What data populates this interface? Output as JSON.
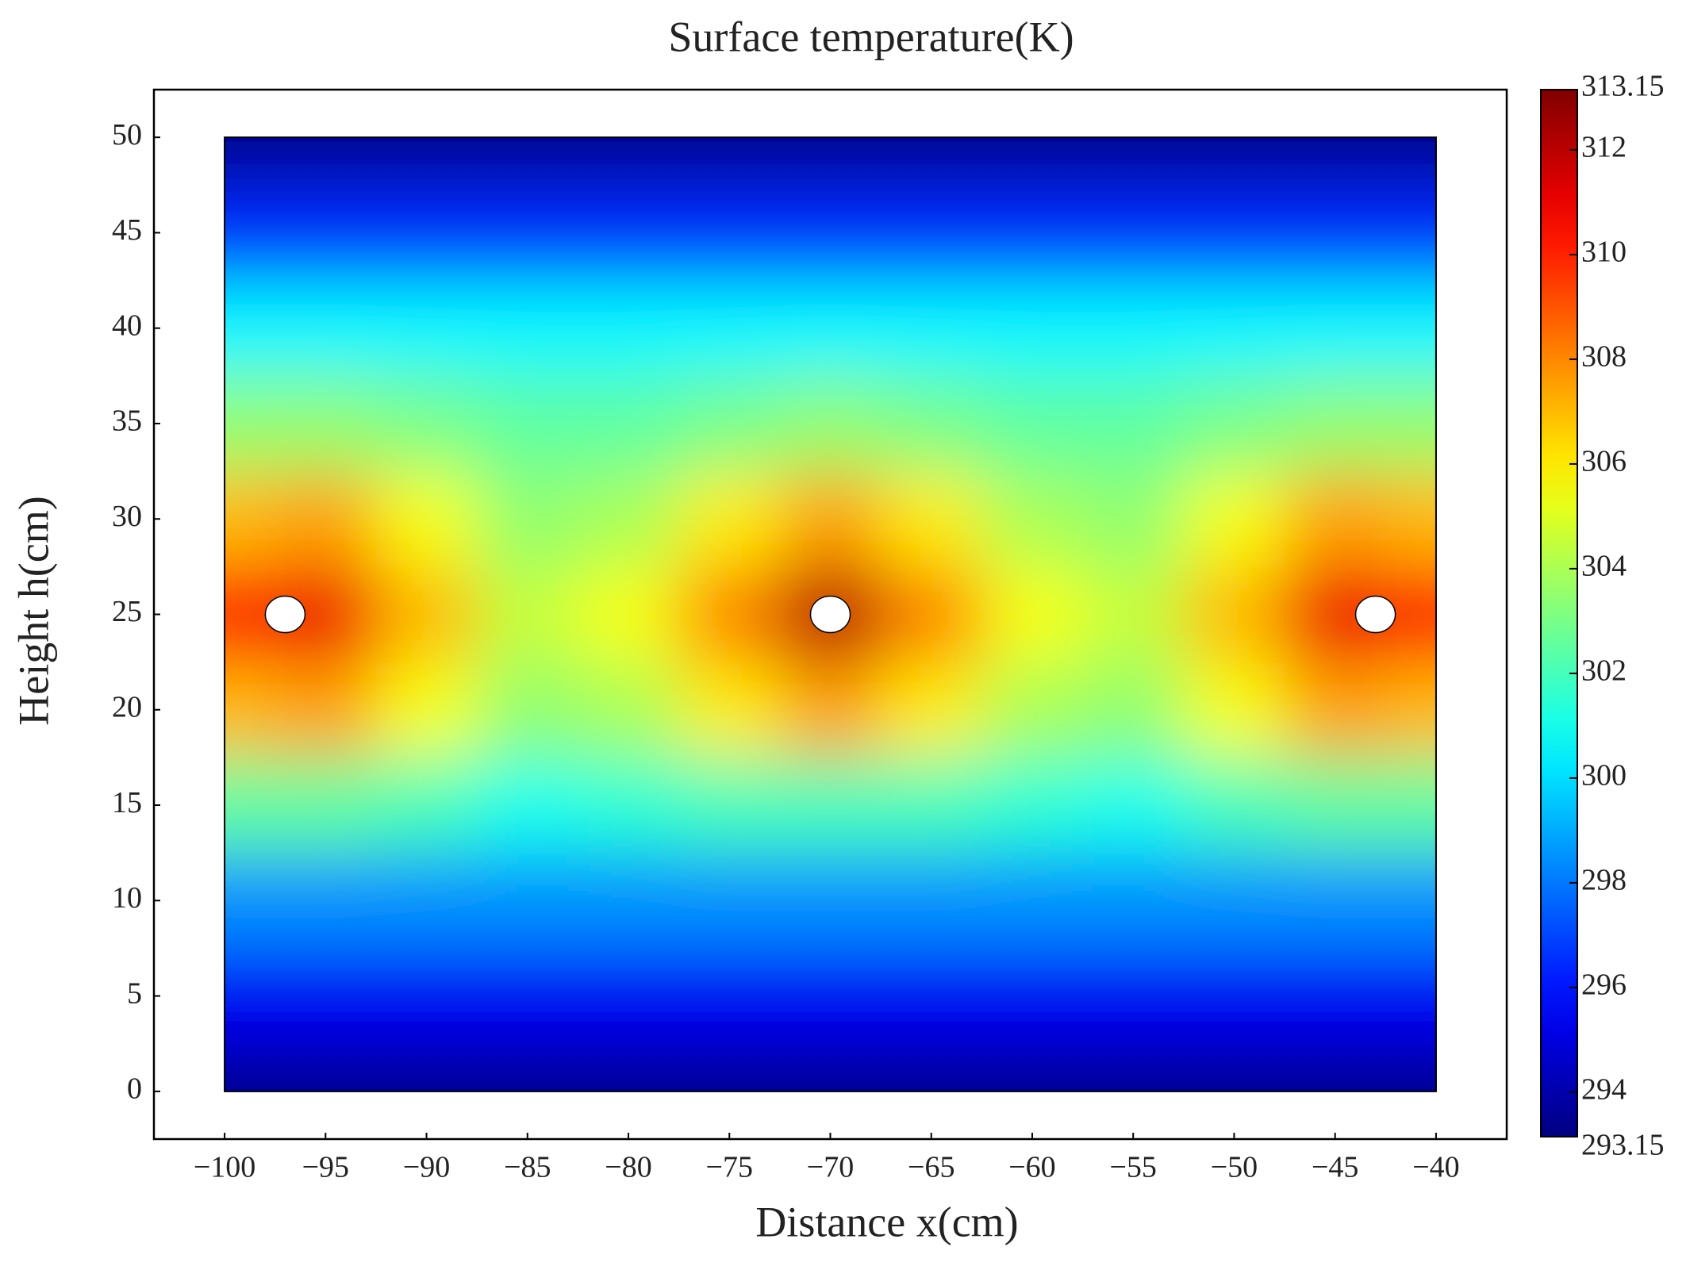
{
  "chart_data": {
    "type": "heatmap",
    "title": "Surface temperature(K)",
    "xlabel": "Distance x(cm)",
    "ylabel": "Height h(cm)",
    "xlim": [
      -103.5,
      -36.5
    ],
    "ylim": [
      -2.5,
      52.5
    ],
    "xticks": [
      {
        "value": -100,
        "label": "−100"
      },
      {
        "value": -95,
        "label": "−95"
      },
      {
        "value": -90,
        "label": "−90"
      },
      {
        "value": -85,
        "label": "−85"
      },
      {
        "value": -80,
        "label": "−80"
      },
      {
        "value": -75,
        "label": "−75"
      },
      {
        "value": -70,
        "label": "−70"
      },
      {
        "value": -65,
        "label": "−65"
      },
      {
        "value": -60,
        "label": "−60"
      },
      {
        "value": -55,
        "label": "−55"
      },
      {
        "value": -50,
        "label": "−50"
      },
      {
        "value": -45,
        "label": "−45"
      },
      {
        "value": -40,
        "label": "−40"
      }
    ],
    "yticks": [
      0,
      5,
      10,
      15,
      20,
      25,
      30,
      35,
      40,
      45,
      50
    ],
    "x": [
      -100,
      -95,
      -90,
      -85,
      -80,
      -75,
      -70,
      -65,
      -60,
      -55,
      -50,
      -45,
      -40
    ],
    "y": [
      0,
      5,
      10,
      15,
      20,
      25,
      30,
      35,
      40,
      45,
      50
    ],
    "z": [
      [
        293.5,
        293.5,
        293.5,
        293.5,
        293.5,
        293.5,
        293.5,
        293.5,
        293.5,
        293.5,
        293.5,
        293.5,
        293.5
      ],
      [
        295.5,
        295.5,
        295.5,
        295.5,
        295.5,
        295.5,
        295.5,
        295.5,
        295.5,
        295.5,
        295.5,
        295.5,
        295.5
      ],
      [
        298.5,
        298.5,
        298.5,
        298.5,
        298.5,
        298.5,
        298.5,
        298.5,
        298.5,
        298.5,
        298.5,
        298.5,
        298.5
      ],
      [
        302.5,
        302.5,
        302,
        301,
        301.5,
        302,
        302,
        302,
        301.5,
        301,
        302,
        302.5,
        302.5
      ],
      [
        307,
        307.5,
        305.5,
        303.5,
        304,
        306,
        307.5,
        306,
        304,
        303.5,
        305.5,
        307.5,
        307
      ],
      [
        310,
        311,
        307,
        304.5,
        305.5,
        308,
        312,
        308,
        305.5,
        304.5,
        307,
        311,
        310
      ],
      [
        307,
        307.5,
        305.5,
        303.5,
        304,
        306,
        307.5,
        306,
        304,
        303.5,
        305.5,
        307.5,
        307
      ],
      [
        303.5,
        303.5,
        303,
        302.5,
        302.5,
        303,
        303.5,
        303,
        302.5,
        302.5,
        303,
        303.5,
        303.5
      ],
      [
        300.5,
        300.5,
        300.5,
        300.5,
        300.5,
        300.5,
        300.5,
        300.5,
        300.5,
        300.5,
        300.5,
        300.5,
        300.5
      ],
      [
        296.5,
        296.5,
        296.5,
        296.5,
        296.5,
        296.5,
        296.5,
        296.5,
        296.5,
        296.5,
        296.5,
        296.5,
        296.5
      ],
      [
        293.5,
        293.5,
        293.5,
        293.5,
        293.5,
        293.5,
        293.5,
        293.5,
        293.5,
        293.5,
        293.5,
        293.5,
        293.5
      ]
    ],
    "sources": {
      "x": [
        -97,
        -70,
        -43
      ],
      "y": [
        25,
        25,
        25
      ]
    },
    "colormap": "jet",
    "clim": [
      293.15,
      313.15
    ],
    "cticks": [
      293.15,
      294,
      296,
      298,
      300,
      302,
      304,
      306,
      308,
      310,
      312,
      313.15
    ]
  }
}
